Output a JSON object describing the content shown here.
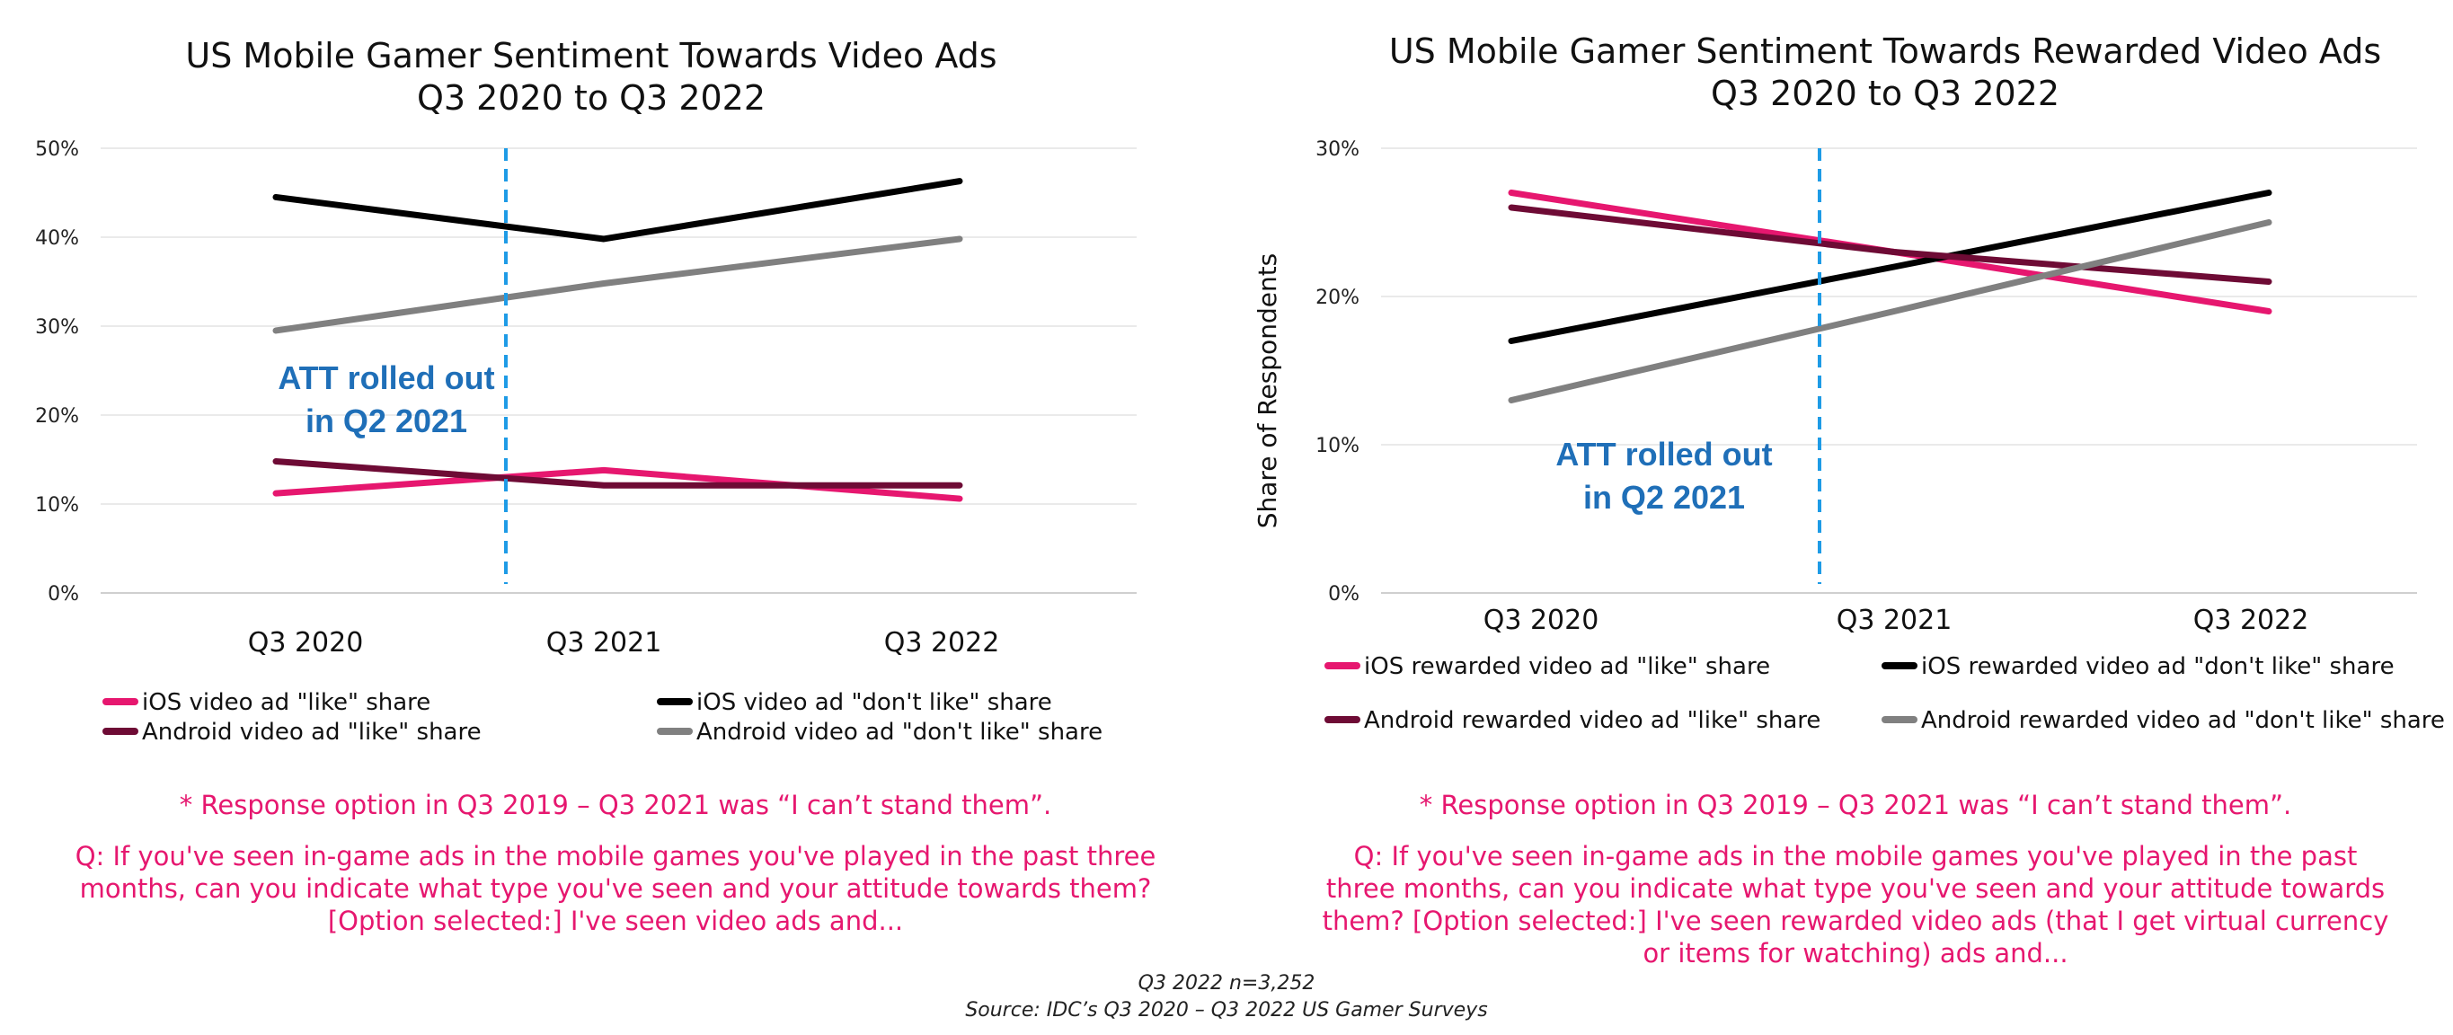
{
  "chart_data": [
    {
      "type": "line",
      "title": [
        "US Mobile Gamer Sentiment Towards Video Ads",
        "Q3 2020 to Q3 2022"
      ],
      "categories": [
        "Q3 2020",
        "Q3 2021",
        "Q3 2022"
      ],
      "ylim": [
        0,
        50
      ],
      "y_ticks": [
        "0%",
        "10%",
        "20%",
        "30%",
        "40%",
        "50%"
      ],
      "ylabel": "",
      "xlabel": "",
      "grid": true,
      "legend_position": "bottom",
      "series": [
        {
          "name": "iOS video ad \"like\" share",
          "values": [
            11.2,
            13.8,
            10.6
          ],
          "color": "#e6176f"
        },
        {
          "name": "iOS video ad \"don't like\" share",
          "values": [
            44.5,
            39.8,
            46.3
          ],
          "color": "#000000"
        },
        {
          "name": "Android video ad \"like\" share",
          "values": [
            14.8,
            12.1,
            12.1
          ],
          "color": "#6e0b35"
        },
        {
          "name": "Android video ad \"don't like\" share",
          "values": [
            29.5,
            34.8,
            39.8
          ],
          "color": "#808080"
        }
      ],
      "annotation": {
        "lines": [
          "ATT rolled out",
          "in Q2 2021"
        ],
        "marker_between": [
          "Q3 2020",
          "Q3 2021"
        ]
      }
    },
    {
      "type": "line",
      "title": [
        "US Mobile Gamer Sentiment Towards Rewarded Video Ads",
        "Q3 2020 to Q3 2022"
      ],
      "categories": [
        "Q3 2020",
        "Q3 2021",
        "Q3 2022"
      ],
      "ylim": [
        0,
        30
      ],
      "y_ticks": [
        "0%",
        "10%",
        "20%",
        "30%"
      ],
      "ylabel": "Share of Respondents",
      "xlabel": "",
      "grid": true,
      "legend_position": "bottom",
      "series": [
        {
          "name": "iOS rewarded video ad \"like\" share",
          "values": [
            27,
            23,
            19
          ],
          "color": "#e6176f"
        },
        {
          "name": "iOS rewarded video ad \"don't like\" share",
          "values": [
            17,
            22,
            27
          ],
          "color": "#000000"
        },
        {
          "name": "Android rewarded video ad \"like\" share",
          "values": [
            26,
            23,
            21
          ],
          "color": "#6e0b35"
        },
        {
          "name": "Android rewarded video ad \"don't like\" share",
          "values": [
            13,
            19,
            25
          ],
          "color": "#808080"
        }
      ],
      "annotation": {
        "lines": [
          "ATT rolled out",
          "in Q2 2021"
        ],
        "marker_between": [
          "Q3 2020",
          "Q3 2021"
        ]
      }
    }
  ],
  "marker_color": "#1e9be6",
  "notes": {
    "left": {
      "response": "* Response option in Q3 2019 – Q3 2021 was “I can’t stand them”.",
      "question": "Q: If you've seen in-game ads in the mobile games you've played in the past three months, can you indicate what type you've seen and your attitude towards them? [Option selected:] I've seen video ads and..."
    },
    "right": {
      "response": "* Response option in Q3 2019 – Q3 2021 was “I can’t stand them”.",
      "question": "Q: If you've seen in-game ads in the mobile games you've played in the past three months, can you indicate what type you've seen and your attitude towards them? [Option selected:] I've seen rewarded video ads (that I get virtual currency or items for watching) ads and..."
    }
  },
  "footer": {
    "sample": "Q3 2022 n=3,252",
    "source": "Source: IDC’s Q3 2020 – Q3 2022 US Gamer Surveys"
  }
}
